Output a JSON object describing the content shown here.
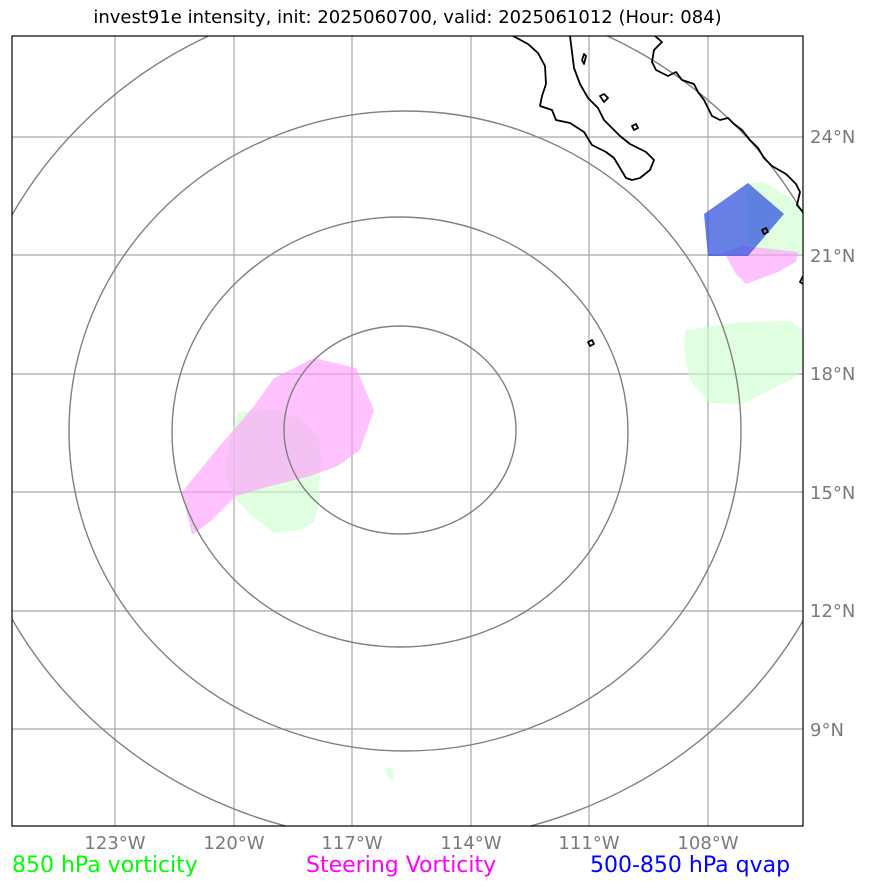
{
  "title": "invest91e intensity, init: 2025060700, valid: 2025061012 (Hour: 084)",
  "lat_labels": [
    "24°N",
    "21°N",
    "18°N",
    "15°N",
    "12°N",
    "9°N"
  ],
  "lon_labels": [
    "123°W",
    "120°W",
    "117°W",
    "114°W",
    "111°W",
    "108°W"
  ],
  "legend": {
    "vort850": {
      "text": "850 hPa vorticity",
      "color": "#00ff00"
    },
    "steering": {
      "text": "Steering Vorticity",
      "color": "#ff00ff"
    },
    "qvap": {
      "text": "500-850 hPa qvap",
      "color": "#0000ff"
    }
  },
  "colors": {
    "grid": "#a9a9a9",
    "range_rings": "#808080",
    "coastline": "#000000",
    "vort850_fill": "#ccffcc",
    "steering_fill": "#ff99ff",
    "qvap_fill": "#3355dd"
  }
}
